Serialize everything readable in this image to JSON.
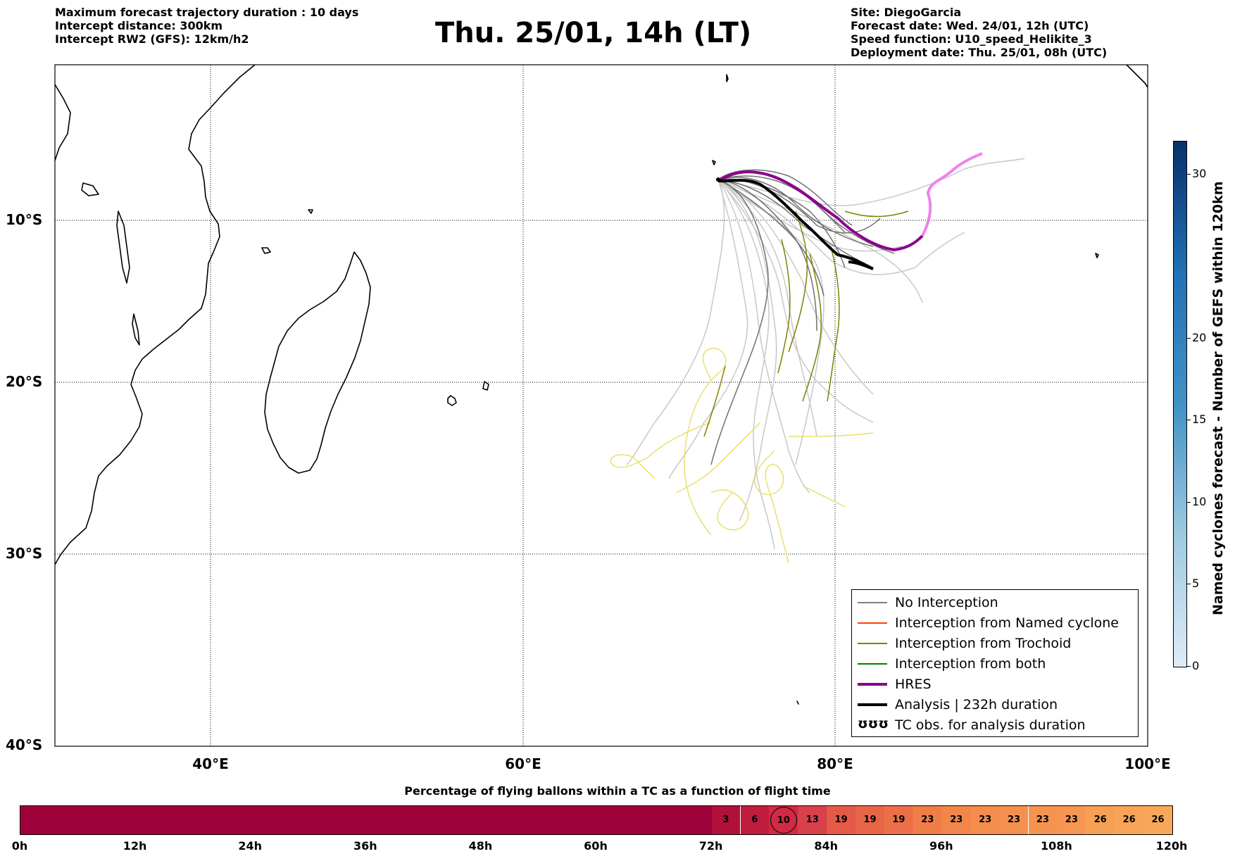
{
  "header_left": [
    "Maximum forecast trajectory duration : 10 days",
    "Intercept distance: 300km",
    "Intercept RW2 (GFS):  12km/h2"
  ],
  "title": "Thu. 25/01, 14h (LT)",
  "header_right": [
    "Site: DiegoGarcia",
    "Forecast date: Wed. 24/01, 12h (UTC)",
    "Speed function: U10_speed_Helikite_3",
    "Deployment date: Thu. 25/01, 08h (UTC)"
  ],
  "map": {
    "lon_range": [
      30,
      100
    ],
    "lat_range": [
      -40,
      1
    ],
    "lon_ticks": [
      "40°E",
      "60°E",
      "80°E",
      "100°E"
    ],
    "lat_ticks": [
      "10°S",
      "20°S",
      "30°S",
      "40°S"
    ],
    "site_marker_color": "#000000"
  },
  "legend": [
    {
      "label": "No Interception",
      "color": "#808080",
      "width": 1.5,
      "kind": "line"
    },
    {
      "label": "Interception from Named cyclone",
      "color": "#ff4000",
      "width": 1.5,
      "kind": "line"
    },
    {
      "label": "Interception from Trochoid",
      "color": "#808000",
      "width": 1.5,
      "kind": "line"
    },
    {
      "label": "Interception from both",
      "color": "#008000",
      "width": 1.5,
      "kind": "line"
    },
    {
      "label": "HRES",
      "color": "#8b008b",
      "width": 4,
      "kind": "line"
    },
    {
      "label": "Analysis | 232h duration",
      "color": "#000000",
      "width": 4,
      "kind": "line"
    },
    {
      "label": "TC obs. for analysis duration",
      "glyph": "ʊʊʊ",
      "kind": "glyph"
    }
  ],
  "colorbar": {
    "title": "Named cyclones forecast - Number of GEFS within 120km",
    "range": [
      0,
      32
    ],
    "ticks": [
      "0",
      "5",
      "10",
      "15",
      "20",
      "30"
    ],
    "tick_values": [
      0,
      5,
      10,
      15,
      20,
      30
    ],
    "color_low": "#deebf7",
    "color_high": "#08306b"
  },
  "bottom": {
    "title": "Percentage of flying ballons within a TC as a function of flight time",
    "time_ticks": [
      "0h",
      "12h",
      "24h",
      "36h",
      "48h",
      "60h",
      "72h",
      "84h",
      "96h",
      "108h",
      "120h"
    ],
    "values": [
      "3",
      "6",
      "10",
      "13",
      "19",
      "19",
      "19",
      "23",
      "23",
      "23",
      "23",
      "23",
      "23",
      "26",
      "26",
      "26"
    ],
    "first_value_hour": 72,
    "step_hours": 3,
    "current_hour": 78,
    "base_color": "#9e003a"
  }
}
